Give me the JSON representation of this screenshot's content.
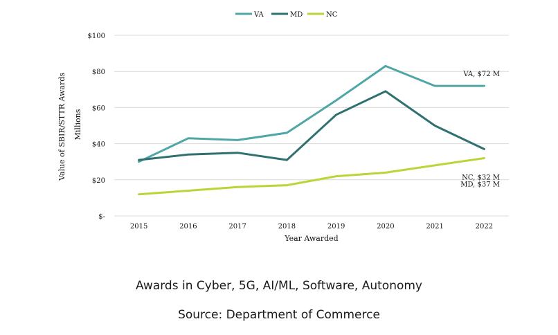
{
  "chart_data": {
    "type": "line",
    "categories": [
      "2015",
      "2016",
      "2017",
      "2018",
      "2019",
      "2020",
      "2021",
      "2022"
    ],
    "series": [
      {
        "name": "VA",
        "color": "#4fa6a6",
        "values": [
          30,
          43,
          42,
          46,
          64,
          83,
          72,
          72
        ],
        "end_label": "VA, $72 M"
      },
      {
        "name": "MD",
        "color": "#2f7070",
        "values": [
          31,
          34,
          35,
          31,
          56,
          69,
          50,
          37
        ],
        "end_label": "MD, $37 M"
      },
      {
        "name": "NC",
        "color": "#bcd437",
        "values": [
          12,
          14,
          16,
          17,
          22,
          24,
          28,
          32
        ],
        "end_label": "NC, $32 M"
      }
    ],
    "ylim": [
      0,
      100
    ],
    "yticks": [
      0,
      20,
      40,
      60,
      80,
      100
    ],
    "ytick_labels": [
      "$-",
      "$20",
      "$40",
      "$60",
      "$80",
      "$100"
    ],
    "xlabel": "Year Awarded",
    "ylabel": "Value of SBIR/STTR Awards",
    "ylabel2": "Millions",
    "grid": true,
    "legend_position": "top-center"
  },
  "captions": {
    "line1": "Awards in Cyber, 5G, AI/ML, Software, Autonomy",
    "line2": "Source: Department of Commerce"
  }
}
